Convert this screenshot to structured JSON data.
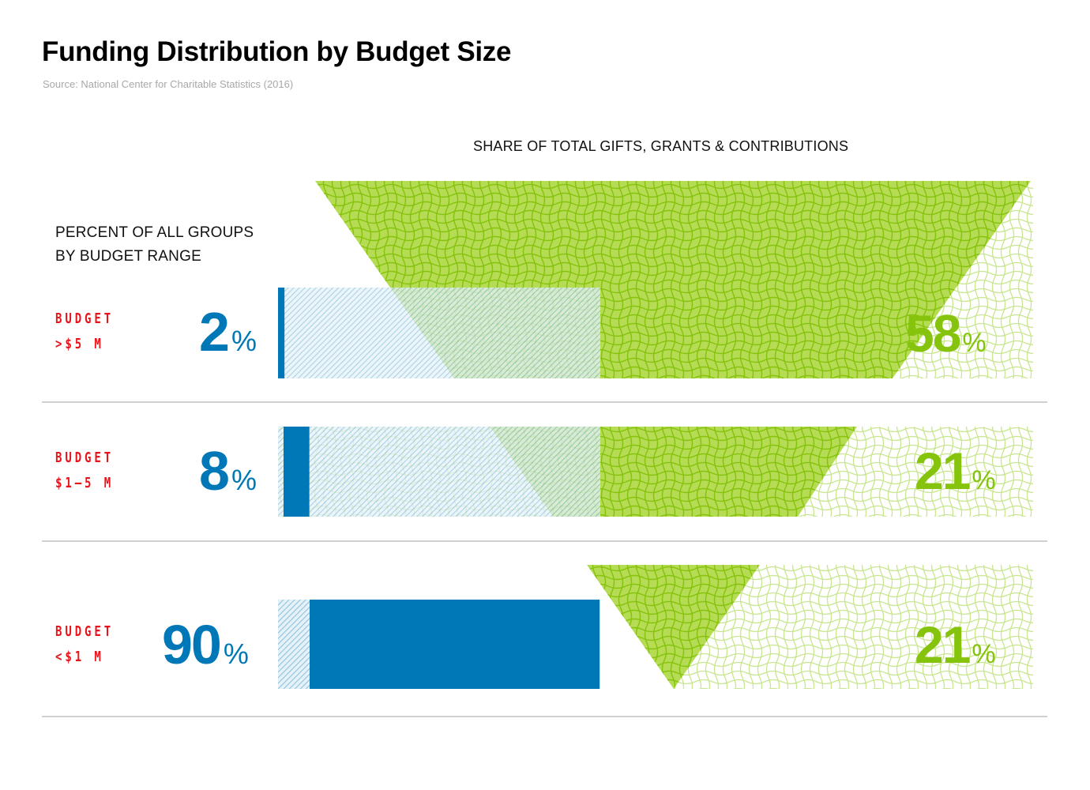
{
  "title": "Funding Distribution by Budget Size",
  "source": "Source: National Center for Charitable Statistics (2016)",
  "left_header_line1": "PERCENT OF ALL GROUPS",
  "left_header_line2": "BY BUDGET RANGE",
  "right_header": "SHARE OF TOTAL GIFTS, GRANTS & CONTRIBUTIONS",
  "colors": {
    "blue": "#0077b6",
    "blue_hatch": "#8fc3e0",
    "green": "#86c30c",
    "green_light": "#c9e690",
    "label_red": "#e8141b",
    "separator": "#d0d0d0"
  },
  "rows": [
    {
      "label_line1": "BUDGET",
      "label_line2": ">$5 M",
      "groups_pct": "2",
      "share_pct": "58",
      "pct_sign": "%"
    },
    {
      "label_line1": "BUDGET",
      "label_line2": "$1–5 M",
      "groups_pct": "8",
      "share_pct": "21",
      "pct_sign": "%"
    },
    {
      "label_line1": "BUDGET",
      "label_line2": "<$1 M",
      "groups_pct": "90",
      "share_pct": "21",
      "pct_sign": "%"
    }
  ],
  "chart_data": {
    "type": "bar",
    "title": "Funding Distribution by Budget Size",
    "subtitle": "Source: National Center for Charitable Statistics (2016)",
    "categories": [
      "Budget >$5 M",
      "Budget $1–5 M",
      "Budget <$1 M"
    ],
    "series": [
      {
        "name": "Percent of all groups by budget range",
        "values": [
          2,
          8,
          90
        ],
        "unit": "%"
      },
      {
        "name": "Share of total gifts, grants & contributions",
        "values": [
          58,
          21,
          21
        ],
        "unit": "%"
      }
    ],
    "xlabel": "",
    "ylabel": "",
    "xlim": [
      0,
      100
    ],
    "grid": false,
    "legend": "none"
  }
}
